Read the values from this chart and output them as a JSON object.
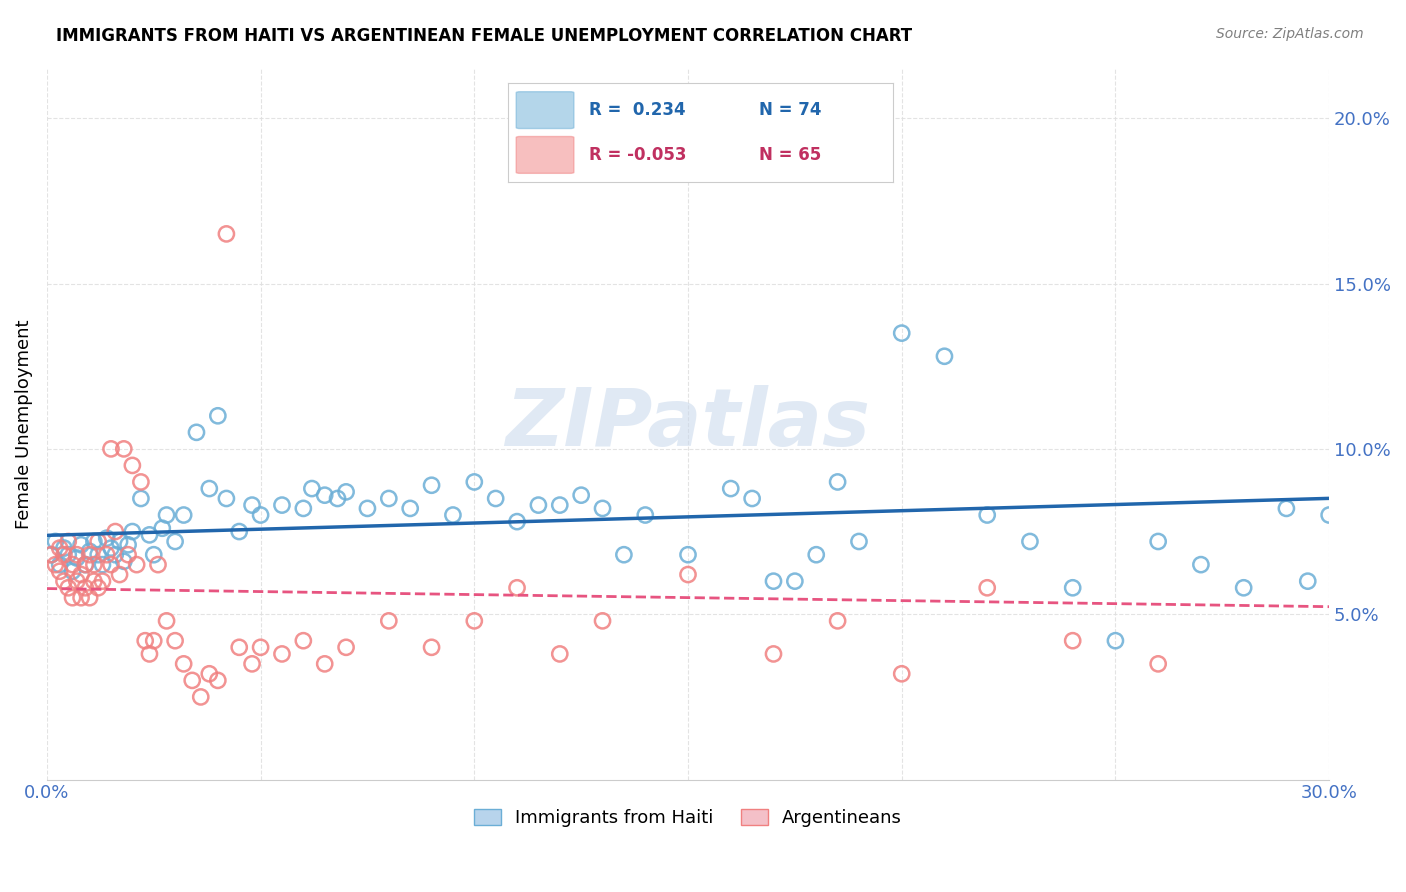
{
  "title": "IMMIGRANTS FROM HAITI VS ARGENTINEAN FEMALE UNEMPLOYMENT CORRELATION CHART",
  "source": "Source: ZipAtlas.com",
  "ylabel": "Female Unemployment",
  "xlim": [
    0.0,
    0.3
  ],
  "ylim": [
    0.0,
    0.215
  ],
  "ytick_vals": [
    0.05,
    0.1,
    0.15,
    0.2
  ],
  "ytick_labels": [
    "5.0%",
    "10.0%",
    "15.0%",
    "20.0%"
  ],
  "xtick_vals": [
    0.0,
    0.05,
    0.1,
    0.15,
    0.2,
    0.25,
    0.3
  ],
  "xtick_labels": [
    "0.0%",
    "",
    "",
    "",
    "",
    "",
    "30.0%"
  ],
  "legend_label1": "Immigrants from Haiti",
  "legend_label2": "Argentineans",
  "watermark": "ZIPatlas",
  "blue_color": "#6BAED6",
  "pink_color": "#F08080",
  "blue_line_color": "#2166AC",
  "pink_line_color": "#E75480",
  "R_blue": 0.234,
  "N_blue": 74,
  "R_pink": -0.053,
  "N_pink": 65,
  "stat_box_R_blue": "R =  0.234",
  "stat_box_N_blue": "N = 74",
  "stat_box_R_pink": "R = -0.053",
  "stat_box_N_pink": "N = 65",
  "blue_scatter_x": [
    0.001,
    0.002,
    0.003,
    0.004,
    0.005,
    0.006,
    0.007,
    0.008,
    0.009,
    0.01,
    0.011,
    0.012,
    0.013,
    0.014,
    0.015,
    0.016,
    0.017,
    0.018,
    0.019,
    0.02,
    0.022,
    0.024,
    0.025,
    0.027,
    0.028,
    0.03,
    0.032,
    0.035,
    0.038,
    0.04,
    0.042,
    0.045,
    0.048,
    0.05,
    0.055,
    0.06,
    0.062,
    0.065,
    0.068,
    0.07,
    0.075,
    0.08,
    0.085,
    0.09,
    0.095,
    0.1,
    0.105,
    0.11,
    0.115,
    0.12,
    0.125,
    0.13,
    0.135,
    0.14,
    0.15,
    0.16,
    0.165,
    0.17,
    0.175,
    0.18,
    0.185,
    0.19,
    0.2,
    0.21,
    0.22,
    0.23,
    0.24,
    0.25,
    0.26,
    0.27,
    0.28,
    0.29,
    0.295,
    0.3
  ],
  "blue_scatter_y": [
    0.068,
    0.072,
    0.065,
    0.07,
    0.068,
    0.063,
    0.067,
    0.071,
    0.065,
    0.069,
    0.072,
    0.068,
    0.065,
    0.073,
    0.07,
    0.068,
    0.072,
    0.066,
    0.071,
    0.075,
    0.085,
    0.074,
    0.068,
    0.076,
    0.08,
    0.072,
    0.08,
    0.105,
    0.088,
    0.11,
    0.085,
    0.075,
    0.083,
    0.08,
    0.083,
    0.082,
    0.088,
    0.086,
    0.085,
    0.087,
    0.082,
    0.085,
    0.082,
    0.089,
    0.08,
    0.09,
    0.085,
    0.078,
    0.083,
    0.083,
    0.086,
    0.082,
    0.068,
    0.08,
    0.068,
    0.088,
    0.085,
    0.06,
    0.06,
    0.068,
    0.09,
    0.072,
    0.135,
    0.128,
    0.08,
    0.072,
    0.058,
    0.042,
    0.072,
    0.065,
    0.058,
    0.082,
    0.06,
    0.08
  ],
  "pink_scatter_x": [
    0.001,
    0.002,
    0.003,
    0.003,
    0.004,
    0.004,
    0.005,
    0.005,
    0.006,
    0.006,
    0.007,
    0.007,
    0.008,
    0.008,
    0.009,
    0.009,
    0.01,
    0.01,
    0.011,
    0.011,
    0.012,
    0.012,
    0.013,
    0.014,
    0.015,
    0.015,
    0.016,
    0.017,
    0.018,
    0.019,
    0.02,
    0.021,
    0.022,
    0.023,
    0.024,
    0.025,
    0.026,
    0.028,
    0.03,
    0.032,
    0.034,
    0.036,
    0.038,
    0.04,
    0.042,
    0.045,
    0.048,
    0.05,
    0.055,
    0.06,
    0.065,
    0.07,
    0.08,
    0.09,
    0.1,
    0.11,
    0.12,
    0.13,
    0.15,
    0.17,
    0.185,
    0.2,
    0.22,
    0.24,
    0.26
  ],
  "pink_scatter_y": [
    0.068,
    0.065,
    0.063,
    0.07,
    0.06,
    0.068,
    0.058,
    0.072,
    0.055,
    0.065,
    0.06,
    0.068,
    0.055,
    0.062,
    0.058,
    0.065,
    0.055,
    0.068,
    0.06,
    0.065,
    0.058,
    0.072,
    0.06,
    0.068,
    0.065,
    0.1,
    0.075,
    0.062,
    0.1,
    0.068,
    0.095,
    0.065,
    0.09,
    0.042,
    0.038,
    0.042,
    0.065,
    0.048,
    0.042,
    0.035,
    0.03,
    0.025,
    0.032,
    0.03,
    0.165,
    0.04,
    0.035,
    0.04,
    0.038,
    0.042,
    0.035,
    0.04,
    0.048,
    0.04,
    0.048,
    0.058,
    0.038,
    0.048,
    0.062,
    0.038,
    0.048,
    0.032,
    0.058,
    0.042,
    0.035
  ]
}
